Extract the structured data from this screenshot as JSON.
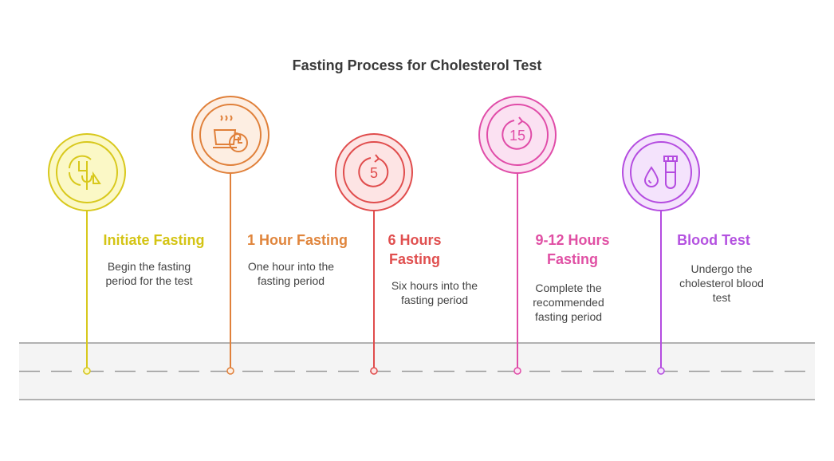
{
  "header": {
    "title": "Fasting Process for Cholesterol Test"
  },
  "steps": [
    {
      "title": "Initiate Fasting",
      "description": "Begin the fasting period for the test"
    },
    {
      "title": "1 Hour Fasting",
      "description": "One hour into the fasting period"
    },
    {
      "title": "6 Hours Fasting",
      "description": "Six hours into the fasting period",
      "icon_text": "5"
    },
    {
      "title": "9-12 Hours Fasting",
      "description": "Complete the recommended fasting period",
      "icon_text": "15"
    },
    {
      "title": "Blood Test",
      "description": "Undergo the cholesterol blood test"
    }
  ]
}
